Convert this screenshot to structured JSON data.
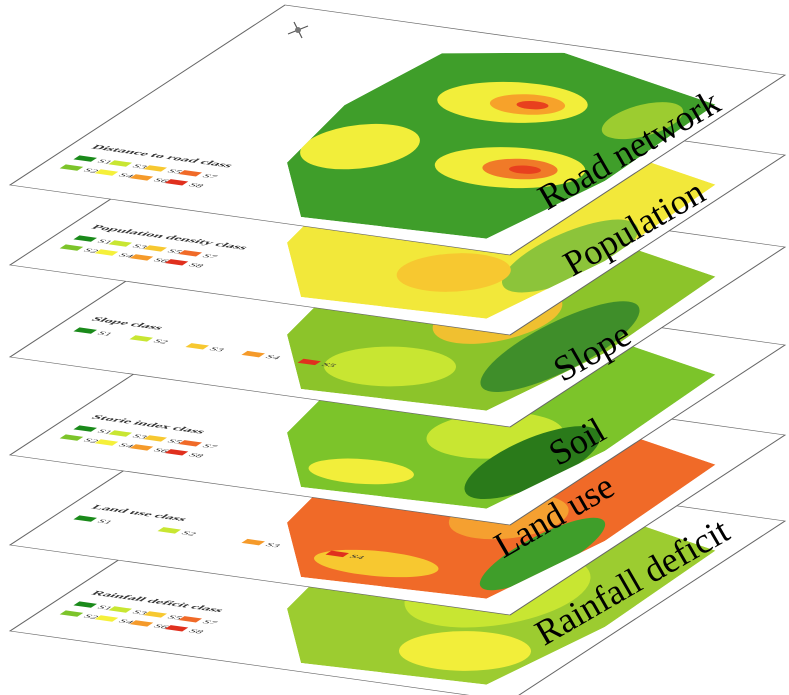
{
  "layers": [
    {
      "label": "Road network",
      "legend_title": "Distance to road class",
      "legend_items": [
        "S1",
        "S2",
        "S3",
        "S4",
        "S5",
        "S6",
        "S7",
        "S8"
      ]
    },
    {
      "label": "Population",
      "legend_title": "Population density class",
      "legend_items": [
        "S1",
        "S2",
        "S3",
        "S4",
        "S5",
        "S6",
        "S7",
        "S8"
      ]
    },
    {
      "label": "Slope",
      "legend_title": "Slope class",
      "legend_items": [
        "S1",
        "S2",
        "S3",
        "S4",
        "S5"
      ]
    },
    {
      "label": "Soil",
      "legend_title": "Storie index class",
      "legend_items": [
        "S1",
        "S2",
        "S3",
        "S4",
        "S5",
        "S6",
        "S7",
        "S8"
      ]
    },
    {
      "label": "Land use",
      "legend_title": "Land use class",
      "legend_items": [
        "S1",
        "S2",
        "S3",
        "S4"
      ]
    },
    {
      "label": "Rainfall deficit",
      "legend_title": "Rainfall deficit class",
      "legend_items": [
        "S1",
        "S2",
        "S3",
        "S4",
        "S5",
        "S6",
        "S7",
        "S8"
      ]
    }
  ]
}
